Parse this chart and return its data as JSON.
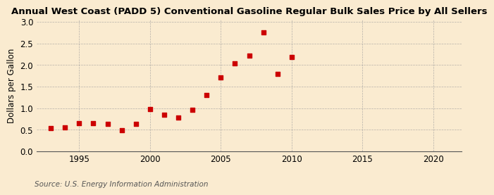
{
  "title": "Annual West Coast (PADD 5) Conventional Gasoline Regular Bulk Sales Price by All Sellers",
  "ylabel": "Dollars per Gallon",
  "source": "Source: U.S. Energy Information Administration",
  "background_color": "#faebd0",
  "plot_bg_color": "#faebd0",
  "marker_color": "#cc0000",
  "years": [
    1993,
    1994,
    1995,
    1996,
    1997,
    1998,
    1999,
    2000,
    2001,
    2002,
    2003,
    2004,
    2005,
    2006,
    2007,
    2008,
    2009,
    2010
  ],
  "values": [
    0.53,
    0.56,
    0.65,
    0.65,
    0.63,
    0.49,
    0.63,
    0.97,
    0.85,
    0.79,
    0.96,
    1.31,
    1.72,
    2.04,
    2.22,
    2.75,
    1.79,
    2.19
  ],
  "xlim": [
    1992,
    2022
  ],
  "ylim": [
    0.0,
    3.05
  ],
  "xticks": [
    1995,
    2000,
    2005,
    2010,
    2015,
    2020
  ],
  "yticks": [
    0.0,
    0.5,
    1.0,
    1.5,
    2.0,
    2.5,
    3.0
  ],
  "grid_color": "#999999",
  "title_fontsize": 9.5,
  "axis_label_fontsize": 8.5,
  "tick_fontsize": 8.5,
  "source_fontsize": 7.5,
  "marker_size": 14
}
